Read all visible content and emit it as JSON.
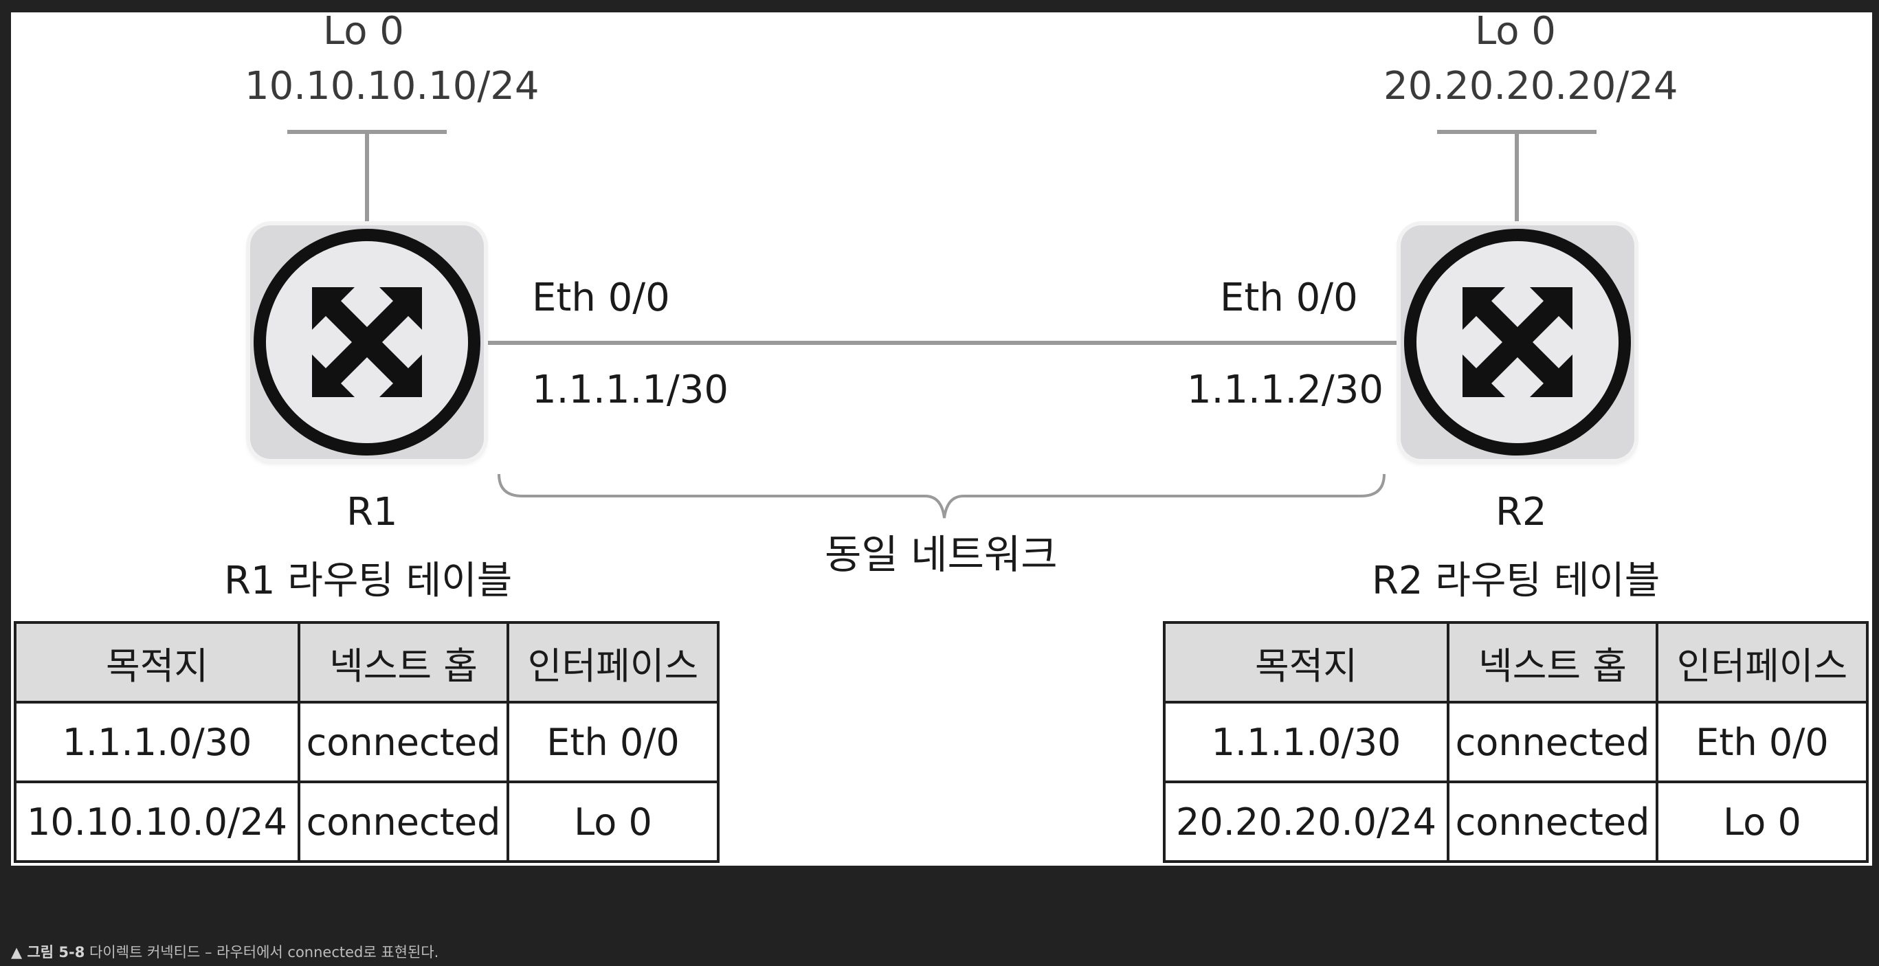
{
  "diagram": {
    "r1": {
      "loopback_name": "Lo 0",
      "loopback_ip": "10.10.10.10/24",
      "eth_name": "Eth 0/0",
      "eth_ip": "1.1.1.1/30",
      "router_name": "R1",
      "table_title": "R1 라우팅 테이블"
    },
    "r2": {
      "loopback_name": "Lo 0",
      "loopback_ip": "20.20.20.20/24",
      "eth_name": "Eth 0/0",
      "eth_ip": "1.1.1.2/30",
      "router_name": "R2",
      "table_title": "R2 라우팅 테이블"
    },
    "network_label": "동일 네트워크"
  },
  "tables": {
    "headers": [
      "목적지",
      "넥스트 홉",
      "인터페이스"
    ],
    "r1_rows": [
      [
        "1.1.1.0/30",
        "connected",
        "Eth 0/0"
      ],
      [
        "10.10.10.0/24",
        "connected",
        "Lo 0"
      ]
    ],
    "r2_rows": [
      [
        "1.1.1.0/30",
        "connected",
        "Eth 0/0"
      ],
      [
        "20.20.20.0/24",
        "connected",
        "Lo 0"
      ]
    ]
  },
  "caption": {
    "marker": "▲ 그림 5-8",
    "text": " 다이렉트 커넥티드 – 라우터에서 connected로 표현된다."
  },
  "icons": {
    "router": "router-icon"
  }
}
